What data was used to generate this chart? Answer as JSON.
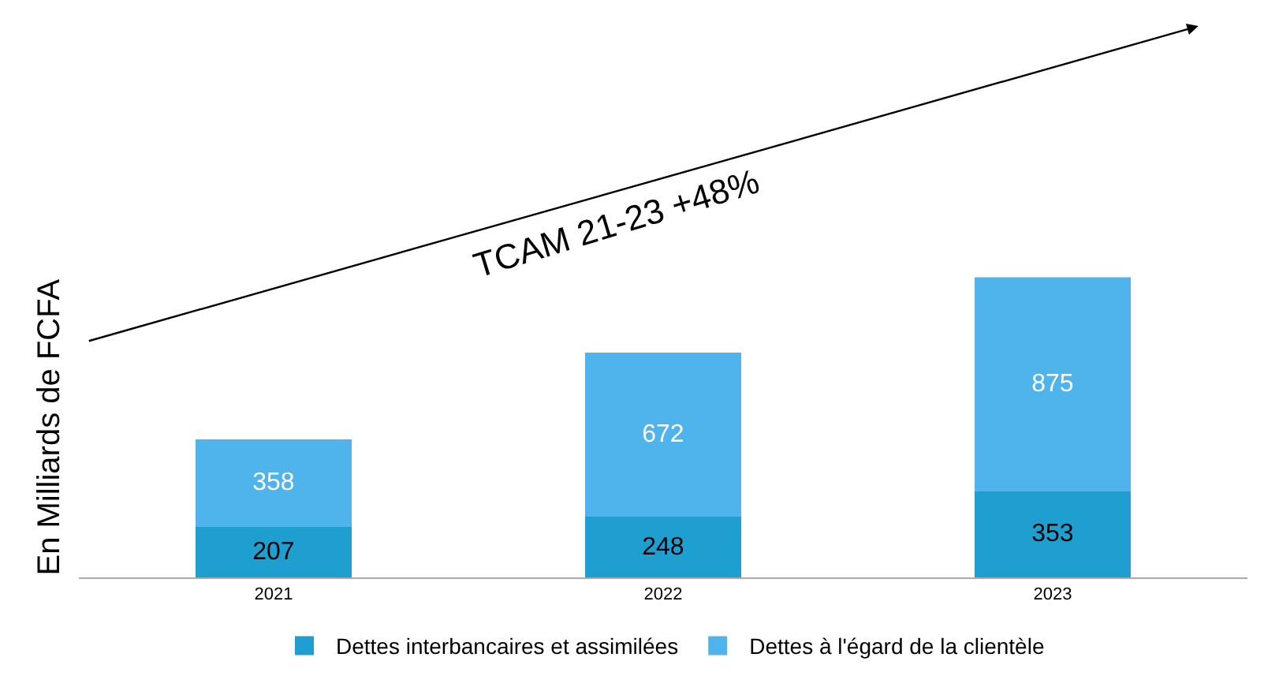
{
  "chart_data": {
    "type": "bar",
    "stacked": true,
    "ylabel": "En Milliards de FCFA",
    "categories": [
      "2021",
      "2022",
      "2023"
    ],
    "series": [
      {
        "name": "Dettes interbancaires et assimilées",
        "color": "#1e9fd0",
        "values": [
          207,
          248,
          353
        ]
      },
      {
        "name": "Dettes à l'égard de la clientèle",
        "color": "#4fb3ec",
        "values": [
          358,
          672,
          875
        ]
      }
    ],
    "data_labels": true,
    "legend": "bottom",
    "annotations": [
      "TCAM 21-23 +48%"
    ]
  }
}
